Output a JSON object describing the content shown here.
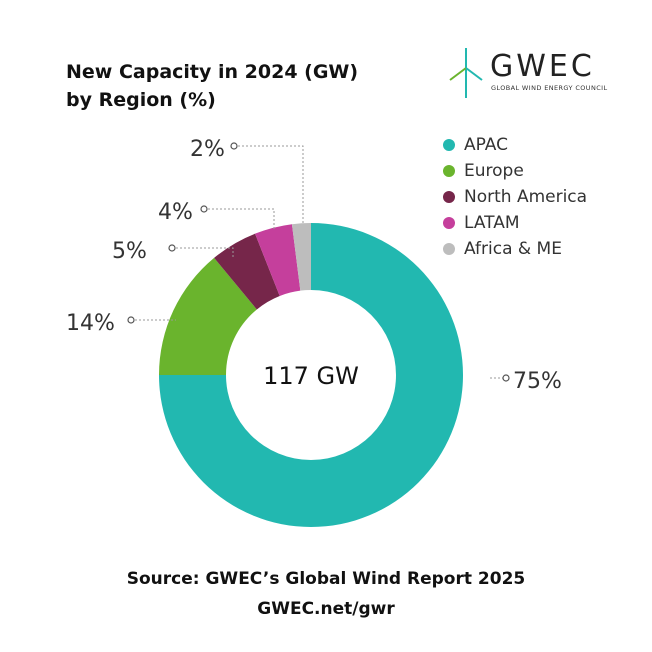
{
  "colors": {
    "apac": "#22b8b0",
    "europe": "#6ab42d",
    "north_america": "#76264a",
    "latam": "#c53f9c",
    "africa_me": "#bdbdbd"
  },
  "logo": {
    "name": "GWEC",
    "tagline": "GLOBAL WIND ENERGY COUNCIL",
    "icon": "wind-turbine-icon"
  },
  "chart_data": {
    "type": "pie",
    "title": "New Capacity in 2024 (GW)",
    "subtitle": "by Region (%)",
    "center_label": "117 GW",
    "legend_position": "top-right",
    "slices": [
      {
        "name": "APAC",
        "value": 75,
        "label": "75%"
      },
      {
        "name": "Europe",
        "value": 14,
        "label": "14%"
      },
      {
        "name": "North America",
        "value": 5,
        "label": "5%"
      },
      {
        "name": "LATAM",
        "value": 4,
        "label": "4%"
      },
      {
        "name": "Africa & ME",
        "value": 2,
        "label": "2%"
      }
    ]
  },
  "footer": {
    "source": "Source: GWEC’s Global Wind Report 2025",
    "url": "GWEC.net/gwr"
  }
}
